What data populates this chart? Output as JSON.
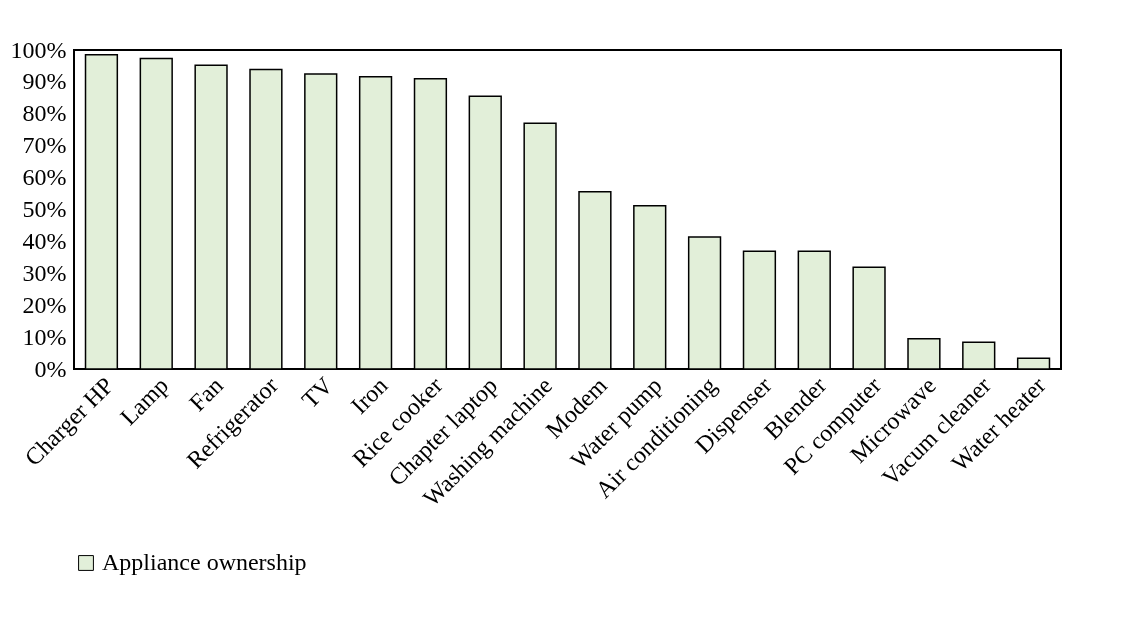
{
  "chart_data": {
    "type": "bar",
    "categories": [
      "Charger HP",
      "Lamp",
      "Fan",
      "Refrigerator",
      "TV",
      "Iron",
      "Rice cooker",
      "Chapter laptop",
      "Washing machine",
      "Modem",
      "Water pump",
      "Air conditioning",
      "Dispenser",
      "Blender",
      "PC computer",
      "Microwave",
      "Vacum cleaner",
      "Water heater"
    ],
    "series": [
      {
        "name": "Appliance ownership",
        "color": "#e2efd9",
        "values": [
          98.5,
          97.3,
          95.2,
          93.9,
          92.5,
          91.6,
          91.0,
          85.5,
          77.0,
          55.6,
          51.2,
          41.4,
          36.9,
          36.9,
          31.9,
          9.5,
          8.4,
          3.4
        ]
      }
    ],
    "ylim": [
      0,
      100
    ],
    "yticks": [
      {
        "value": 0,
        "label": "0%"
      },
      {
        "value": 10,
        "label": "10%"
      },
      {
        "value": 20,
        "label": "20%"
      },
      {
        "value": 30,
        "label": "30%"
      },
      {
        "value": 40,
        "label": "40%"
      },
      {
        "value": 50,
        "label": "50%"
      },
      {
        "value": 60,
        "label": "60%"
      },
      {
        "value": 70,
        "label": "70%"
      },
      {
        "value": 80,
        "label": "80%"
      },
      {
        "value": 90,
        "label": "90%"
      },
      {
        "value": 100,
        "label": "100%"
      }
    ],
    "grid": false,
    "legend": "bottom"
  }
}
